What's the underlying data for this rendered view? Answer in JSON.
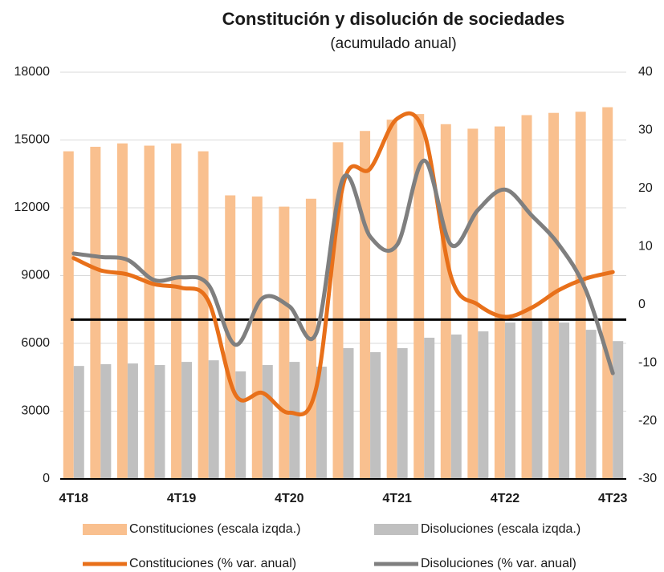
{
  "chart_data": {
    "type": "combo",
    "title": "Constitución y disolución de sociedades",
    "subtitle": "(acumulado anual)",
    "categories": [
      "4T18",
      null,
      null,
      null,
      "4T19",
      null,
      null,
      null,
      "4T20",
      null,
      null,
      null,
      "4T21",
      null,
      null,
      null,
      "4T22",
      null,
      null,
      null,
      "4T23"
    ],
    "ylim": [
      0,
      18000
    ],
    "yticks": [
      0,
      3000,
      6000,
      9000,
      12000,
      15000,
      18000
    ],
    "y2lim": [
      -30,
      40
    ],
    "y2ticks": [
      -30,
      -20,
      -10,
      0,
      10,
      20,
      30,
      40
    ],
    "grid": true,
    "reference_line": 7050,
    "legend": "bottom",
    "series": [
      {
        "name": "Constituciones (escala izqda.)",
        "type": "bar",
        "color": "#f9c08f",
        "values": [
          14500,
          14700,
          14850,
          14750,
          14850,
          14500,
          12550,
          12500,
          12050,
          12400,
          14900,
          15400,
          15900,
          16150,
          15700,
          15500,
          15600,
          16100,
          16200,
          16250,
          16450
        ]
      },
      {
        "name": "Disoluciones (escala izqda.)",
        "type": "bar",
        "color": "#c0c0c0",
        "values": [
          5000,
          5080,
          5110,
          5040,
          5180,
          5250,
          4760,
          5040,
          5180,
          4970,
          5790,
          5610,
          5790,
          6250,
          6390,
          6530,
          6920,
          7060,
          6920,
          6600,
          6100
        ]
      },
      {
        "name": "Constituciones (% var. anual)",
        "type": "line",
        "axis": "y2",
        "color": "#e8701a",
        "values": [
          8.0,
          5.9,
          5.2,
          3.5,
          2.9,
          0.6,
          -15.5,
          -15.2,
          -18.6,
          -14.3,
          20.7,
          23.4,
          32.0,
          29.6,
          4.8,
          0,
          -2.1,
          -0.5,
          2.5,
          4.5,
          5.6
        ]
      },
      {
        "name": "Disoluciones (% var. anual)",
        "type": "line",
        "axis": "y2",
        "color": "#7f7f7f",
        "values": [
          8.8,
          8.2,
          7.7,
          4.2,
          4.7,
          3.4,
          -6.9,
          1.1,
          -0.3,
          -4.9,
          21.8,
          11.7,
          10.3,
          24.8,
          10.3,
          16.3,
          19.8,
          15.3,
          10.3,
          2.5,
          -11.8
        ]
      }
    ]
  }
}
